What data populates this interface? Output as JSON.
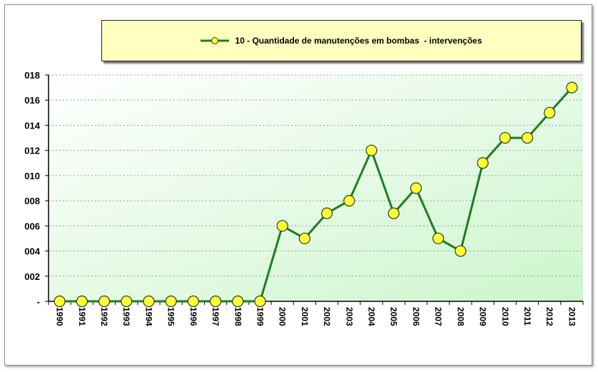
{
  "chart_data": {
    "type": "line",
    "title": "",
    "xlabel": "",
    "ylabel": "",
    "categories": [
      "1990",
      "1991",
      "1992",
      "1993",
      "1994",
      "1995",
      "1996",
      "1997",
      "1998",
      "1999",
      "2000",
      "2001",
      "2002",
      "2003",
      "2004",
      "2005",
      "2006",
      "2007",
      "2008",
      "2009",
      "2010",
      "2011",
      "2012",
      "2013"
    ],
    "series": [
      {
        "name": "10 - Quantidade de manutenções em bombas  - intervenções",
        "values": [
          0,
          0,
          0,
          0,
          0,
          0,
          0,
          0,
          0,
          0,
          6,
          5,
          7,
          8,
          12,
          7,
          9,
          5,
          4,
          11,
          13,
          13,
          15,
          17
        ]
      }
    ],
    "ylim": [
      0,
      18
    ],
    "y_ticks": [
      0,
      2,
      4,
      6,
      8,
      10,
      12,
      14,
      16,
      18
    ],
    "y_tick_labels": [
      "-",
      "002",
      "004",
      "006",
      "008",
      "010",
      "012",
      "014",
      "016",
      "018"
    ],
    "grid": true,
    "legend_position": "top",
    "colors": {
      "line": "#1e7d1e",
      "marker_fill": "#ffff33",
      "marker_edge": "#333333",
      "legend_background": "#ffffc0",
      "plot_gradient_start": "#ffffff",
      "plot_gradient_end": "#ccf5cc"
    }
  }
}
